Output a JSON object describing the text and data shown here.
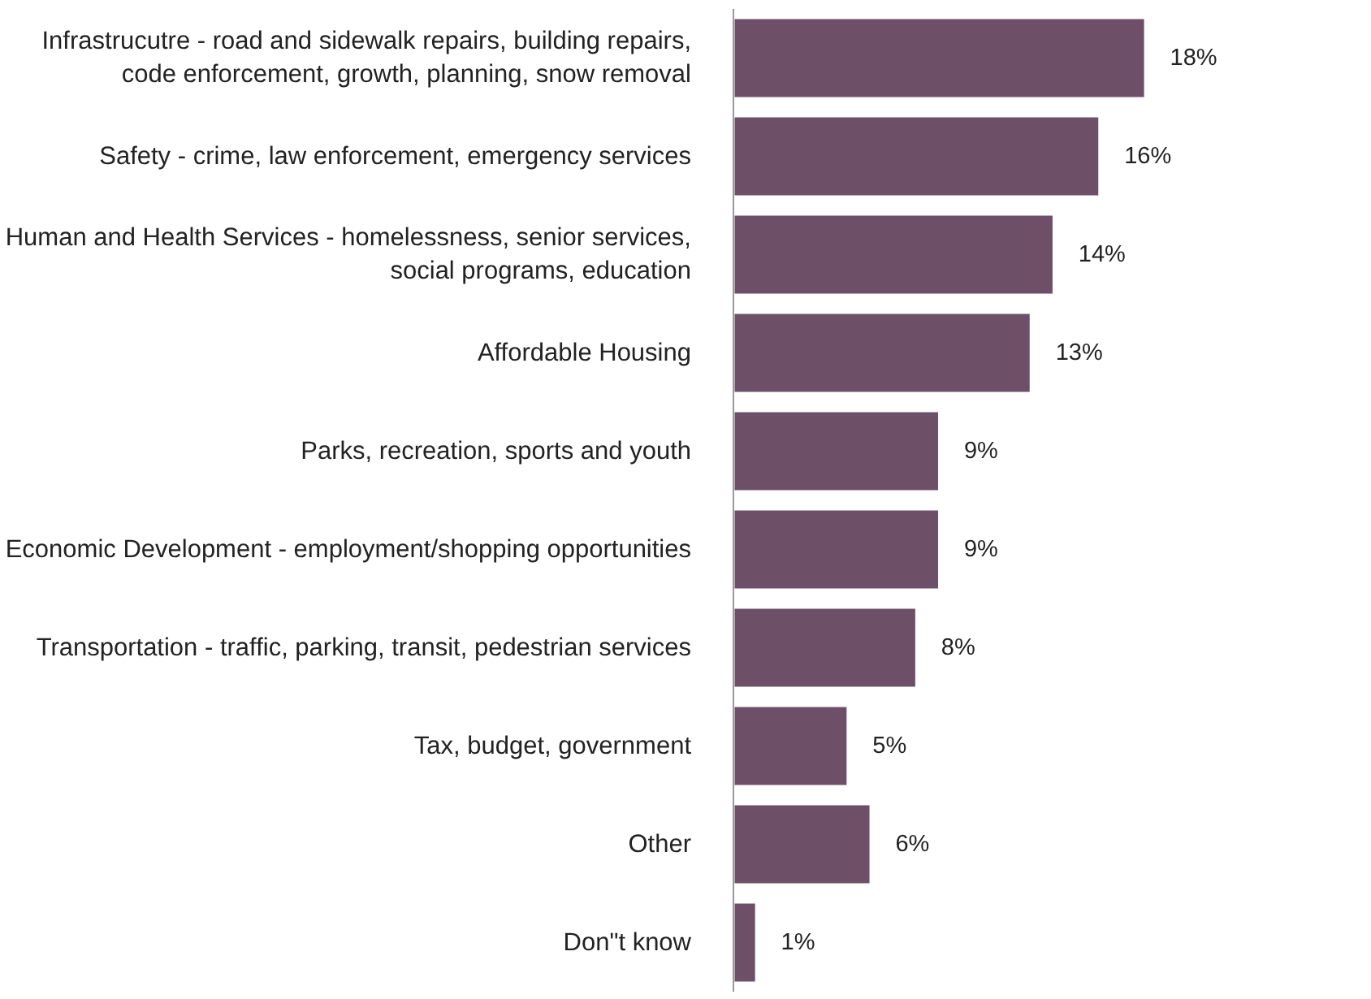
{
  "chart_data": {
    "type": "bar",
    "orientation": "horizontal",
    "data_labels": true,
    "tick_labels": "y",
    "categories": [
      "Infrastrucutre - road and sidewalk repairs, building repairs,\ncode enforcement, growth, planning, snow removal",
      "Safety - crime, law enforcement, emergency services",
      "Human and Health Services - homelessness, senior services,\nsocial programs, education",
      "Affordable Housing",
      "Parks, recreation, sports and youth",
      "Economic Development - employment/shopping opportunities",
      "Transportation - traffic, parking, transit, pedestrian services",
      "Tax, budget, government",
      "Other",
      "Don\"t know"
    ],
    "values": [
      18,
      16,
      14,
      13,
      9,
      9,
      8,
      5,
      6,
      1
    ],
    "value_labels": [
      "18%",
      "16%",
      "14%",
      "13%",
      "9%",
      "9%",
      "8%",
      "5%",
      "6%",
      "1%"
    ],
    "color": "#6d5068"
  }
}
